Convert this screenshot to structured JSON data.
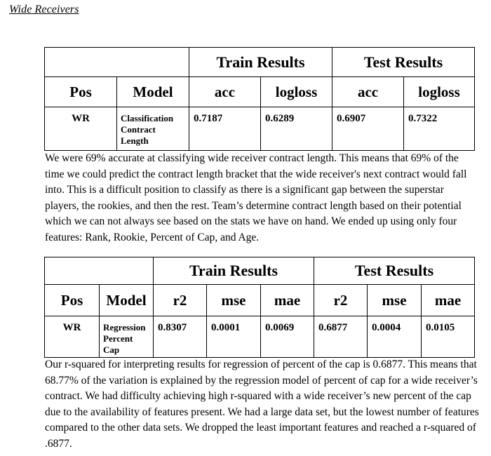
{
  "heading": "Wide Receivers",
  "classification": {
    "group_headers": [
      "Train Results",
      "Test Results"
    ],
    "col_headers": [
      "Pos",
      "Model",
      "acc",
      "logloss",
      "acc",
      "logloss"
    ],
    "row": {
      "pos": "WR",
      "model": [
        "Classification",
        "Contract",
        "Length"
      ],
      "values": [
        "0.7187",
        "0.6289",
        "0.6907",
        "0.7322"
      ]
    }
  },
  "paragraph1": "We were 69% accurate at classifying wide receiver contract length. This means that 69% of the time we could predict the contract length bracket that the wide receiver's next contract would fall into. This is a difficult position to classify as there is a significant gap between the superstar players, the rookies, and then the rest. Team’s determine contract length based on their potential which we can not always see based on the stats we have on hand. We ended up using only four features: Rank, Rookie, Percent of Cap, and Age.",
  "regression": {
    "group_headers": [
      "Train Results",
      "Test Results"
    ],
    "col_headers": [
      "Pos",
      "Model",
      "r2",
      "mse",
      "mae",
      "r2",
      "mse",
      "mae"
    ],
    "row": {
      "pos": "WR",
      "model": [
        "Regression",
        "Percent",
        "Cap"
      ],
      "values": [
        "0.8307",
        "0.0001",
        "0.0069",
        "0.6877",
        "0.0004",
        "0.0105"
      ]
    }
  },
  "paragraph2": "Our r-squared for interpreting results for regression of percent of the cap is 0.6877. This means that 68.77% of the variation is explained by the regression model of percent of cap for a wide receiver’s contract. We had difficulty achieving high r-squared with a wide receiver’s new percent of the cap due to the availability of features present. We had a large data set, but the lowest number of features compared to the other data sets. We dropped the least important features and reached a r-squared of .6877."
}
